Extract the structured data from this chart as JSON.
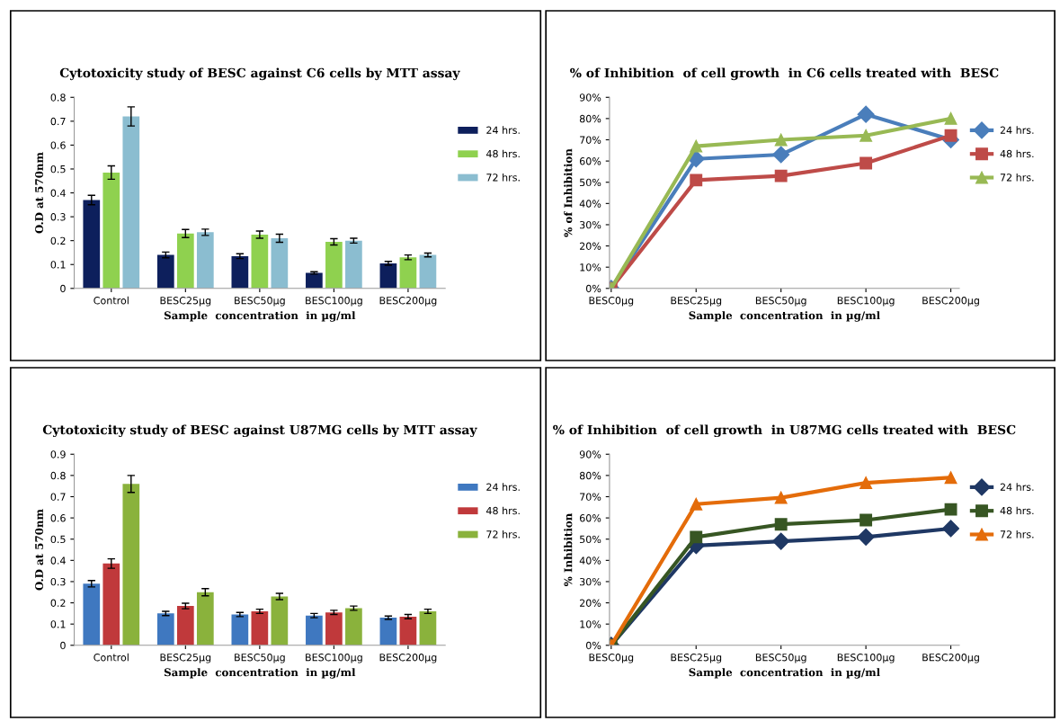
{
  "chart_data": [
    {
      "type": "bar",
      "title": "Cytotoxicity study of BESC against C6 cells by MTT assay",
      "xlabel": "Sample  concentration  in µg/ml",
      "ylabel": "O.D at 570nm",
      "categories": [
        "Control",
        "BESC25µg",
        "BESC50µg",
        "BESC100µg",
        "BESC200µg"
      ],
      "series": [
        {
          "name": "24 hrs.",
          "color": "#0d1f5c",
          "values": [
            0.37,
            0.14,
            0.135,
            0.065,
            0.105
          ],
          "errors": [
            0.02,
            0.012,
            0.01,
            0.005,
            0.008
          ]
        },
        {
          "name": "48 hrs.",
          "color": "#8fd14f",
          "values": [
            0.485,
            0.23,
            0.225,
            0.195,
            0.13
          ],
          "errors": [
            0.028,
            0.017,
            0.015,
            0.013,
            0.01
          ]
        },
        {
          "name": "72 hrs.",
          "color": "#8bbdd0",
          "values": [
            0.72,
            0.235,
            0.21,
            0.2,
            0.14
          ],
          "errors": [
            0.04,
            0.013,
            0.017,
            0.01,
            0.008
          ]
        }
      ],
      "ylim": [
        0,
        0.8
      ],
      "yticks": [
        0,
        0.1,
        0.2,
        0.3,
        0.4,
        0.5,
        0.6,
        0.7,
        0.8
      ],
      "legend": "right",
      "grid": false
    },
    {
      "type": "line",
      "title": "% of Inhibition  of cell growth  in C6 cells treated with  BESC",
      "xlabel": "Sample  concentration  in µg/ml",
      "ylabel": "% of Inhibition",
      "categories": [
        "BESC0µg",
        "BESC25µg",
        "BESC50µg",
        "BESC100µg",
        "BESC200µg"
      ],
      "series": [
        {
          "name": "24 hrs.",
          "color": "#4a7ebb",
          "marker": "diamond",
          "values": [
            0,
            61,
            63,
            82,
            70
          ]
        },
        {
          "name": "48 hrs.",
          "color": "#be4b48",
          "marker": "square",
          "values": [
            0,
            51,
            53,
            59,
            72
          ]
        },
        {
          "name": "72 hrs.",
          "color": "#98b954",
          "marker": "triangle",
          "values": [
            0,
            67,
            70,
            72,
            80
          ]
        }
      ],
      "ylim": [
        0,
        90
      ],
      "yticks": [
        {
          "value": 0,
          "label": "0%"
        },
        {
          "value": 10,
          "label": "10%"
        },
        {
          "value": 20,
          "label": "20%"
        },
        {
          "value": 30,
          "label": "30%"
        },
        {
          "value": 40,
          "label": "40%"
        },
        {
          "value": 50,
          "label": "50%"
        },
        {
          "value": 60,
          "label": "60%"
        },
        {
          "value": 70,
          "label": "70%"
        },
        {
          "value": 80,
          "label": "80%"
        },
        {
          "value": 90,
          "label": "90%"
        }
      ],
      "legend": "right",
      "grid": false
    },
    {
      "type": "bar",
      "title": "Cytotoxicity study of BESC against U87MG cells by MTT assay",
      "xlabel": "Sample  concentration  in µg/ml",
      "ylabel": "O.D at 570nm",
      "categories": [
        "Control",
        "BESC25µg",
        "BESC50µg",
        "BESC100µg",
        "BESC200µg"
      ],
      "series": [
        {
          "name": "24 hrs.",
          "color": "#3f78c0",
          "values": [
            0.29,
            0.15,
            0.145,
            0.14,
            0.13
          ],
          "errors": [
            0.015,
            0.01,
            0.01,
            0.01,
            0.008
          ]
        },
        {
          "name": "48 hrs.",
          "color": "#c0393b",
          "values": [
            0.385,
            0.185,
            0.16,
            0.155,
            0.135
          ],
          "errors": [
            0.022,
            0.013,
            0.01,
            0.01,
            0.01
          ]
        },
        {
          "name": "72 hrs.",
          "color": "#8ab23c",
          "values": [
            0.76,
            0.25,
            0.23,
            0.175,
            0.16
          ],
          "errors": [
            0.04,
            0.017,
            0.015,
            0.01,
            0.01
          ]
        }
      ],
      "ylim": [
        0,
        0.9
      ],
      "yticks": [
        0,
        0.1,
        0.2,
        0.3,
        0.4,
        0.5,
        0.6,
        0.7,
        0.8,
        0.9
      ],
      "legend": "right",
      "grid": false
    },
    {
      "type": "line",
      "title": "% of Inhibition  of cell growth  in U87MG cells treated with  BESC",
      "xlabel": "Sample  concentration  in µg/ml",
      "ylabel": "% Inhibition",
      "categories": [
        "BESC0µg",
        "BESC25µg",
        "BESC50µg",
        "BESC100µg",
        "BESC200µg"
      ],
      "series": [
        {
          "name": "24 hrs.",
          "color": "#1f3864",
          "marker": "diamond",
          "values": [
            0,
            47,
            49,
            51,
            55
          ]
        },
        {
          "name": "48 hrs.",
          "color": "#375623",
          "marker": "square",
          "values": [
            0,
            51,
            57,
            59,
            64
          ]
        },
        {
          "name": "72 hrs.",
          "color": "#e46c0a",
          "marker": "triangle",
          "values": [
            0,
            66.5,
            69.5,
            76.5,
            79
          ]
        }
      ],
      "ylim": [
        0,
        90
      ],
      "yticks": [
        {
          "value": 0,
          "label": "0%"
        },
        {
          "value": 10,
          "label": "10%"
        },
        {
          "value": 20,
          "label": "20%"
        },
        {
          "value": 30,
          "label": "30%"
        },
        {
          "value": 40,
          "label": "40%"
        },
        {
          "value": 50,
          "label": "50%"
        },
        {
          "value": 60,
          "label": "60%"
        },
        {
          "value": 70,
          "label": "70%"
        },
        {
          "value": 80,
          "label": "80%"
        },
        {
          "value": 90,
          "label": "90%"
        }
      ],
      "legend": "right",
      "grid": false
    }
  ]
}
